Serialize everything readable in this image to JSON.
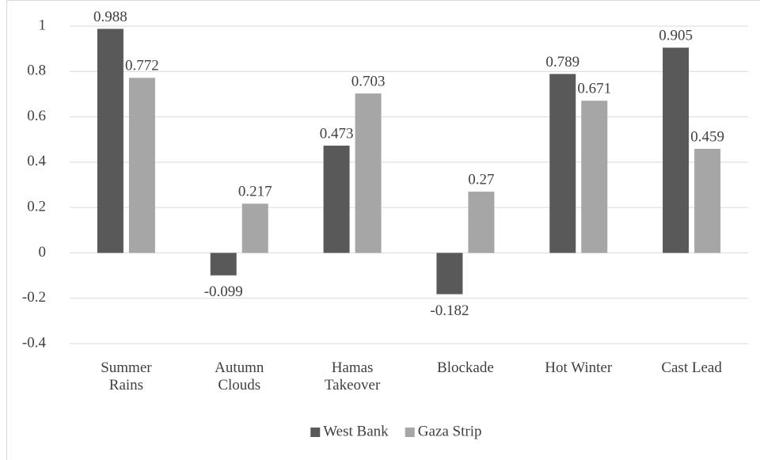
{
  "chart_data": {
    "type": "bar",
    "categories": [
      "Summer Rains",
      "Autumn Clouds",
      "Hamas Takeover",
      "Blockade",
      "Hot Winter",
      "Cast Lead"
    ],
    "series": [
      {
        "name": "West Bank",
        "color": "#595959",
        "values": [
          0.988,
          -0.099,
          0.473,
          -0.182,
          0.789,
          0.905
        ]
      },
      {
        "name": "Gaza Strip",
        "color": "#a6a6a6",
        "values": [
          0.772,
          0.217,
          0.703,
          0.27,
          0.671,
          0.459
        ]
      }
    ],
    "ylim": [
      -0.4,
      1
    ],
    "yticks": [
      -0.4,
      -0.2,
      0,
      0.2,
      0.4,
      0.6,
      0.8,
      1
    ],
    "grid": true,
    "legend": "bottom"
  }
}
